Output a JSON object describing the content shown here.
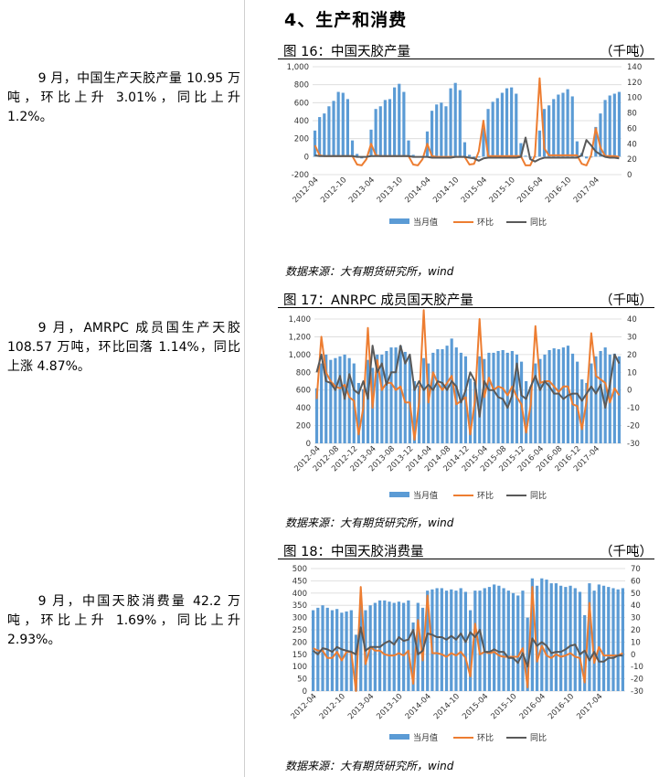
{
  "section_title": "4、生产和消费",
  "comments": [
    "9 月，中国生产天胶产量 10.95 万吨，环比上升 3.01%，同比上升 1.2%。",
    "9 月，AMRPC 成员国生产天胶 108.57 万吨，环比回落 1.14%，同比上涨 4.87%。",
    "9 月，中国天胶消费量 42.2 万吨，环比上升 1.69%，同比上升 2.93%。"
  ],
  "figures": [
    {
      "title": "图 16：中国天胶产量",
      "unit": "（千吨）",
      "source": "数据来源：大有期货研究所，wind"
    },
    {
      "title": "图 17：ANRPC 成员国天胶产量",
      "unit": "（千吨）",
      "source": "数据来源：大有期货研究所，wind"
    },
    {
      "title": "图 18：中国天胶消费量",
      "unit": "（千吨）",
      "source": "数据来源：大有期货研究所，wind"
    }
  ],
  "colors": {
    "bar": "#5b9bd5",
    "mom": "#ed7d31",
    "yoy": "#595959"
  },
  "chart_data": [
    {
      "type": "bar",
      "title": "图 16：中国天胶产量",
      "legend": [
        "当月值",
        "环比",
        "同比"
      ],
      "legend_position": "bottom",
      "grid": true,
      "ylim_left": [
        -200,
        1000
      ],
      "yticks_left": [
        "1,000",
        "800",
        "600",
        "400",
        "200",
        "0",
        "-200"
      ],
      "ylim_right": [
        0,
        140
      ],
      "yticks_right": [
        "140",
        "120",
        "100",
        "80",
        "60",
        "40",
        "20",
        "0"
      ],
      "x_tick_labels": [
        "2012-04",
        "2012-10",
        "2013-04",
        "2013-10",
        "2014-04",
        "2014-10",
        "2015-04",
        "2015-10",
        "2016-04",
        "2016-10",
        "2017-04"
      ],
      "x_tick_index": [
        0,
        6,
        12,
        18,
        24,
        30,
        36,
        42,
        48,
        54,
        60
      ],
      "series": [
        {
          "name": "当月值",
          "axis": "left",
          "type": "bar",
          "values": [
            290,
            440,
            480,
            560,
            620,
            720,
            710,
            640,
            180,
            30,
            -20,
            -10,
            300,
            530,
            560,
            630,
            640,
            770,
            810,
            720,
            180,
            20,
            -10,
            -10,
            280,
            510,
            580,
            600,
            560,
            760,
            820,
            740,
            160,
            20,
            -20,
            -10,
            320,
            530,
            610,
            650,
            710,
            760,
            770,
            700,
            150,
            10,
            -20,
            -10,
            290,
            530,
            570,
            640,
            690,
            710,
            750,
            670,
            170,
            40,
            -20,
            -10,
            330,
            480,
            630,
            680,
            700,
            720
          ]
        },
        {
          "name": "环比",
          "axis": "right",
          "type": "line",
          "values": [
            38,
            25,
            24,
            24,
            24,
            24,
            24,
            24,
            24,
            13,
            12,
            20,
            40,
            25,
            24,
            24,
            24,
            24,
            24,
            24,
            24,
            13,
            12,
            20,
            40,
            24,
            23,
            23,
            23,
            23,
            23,
            23,
            23,
            13,
            14,
            30,
            70,
            24,
            24,
            24,
            24,
            24,
            24,
            24,
            24,
            12,
            12,
            25,
            125,
            34,
            25,
            25,
            25,
            25,
            25,
            25,
            25,
            14,
            12,
            25,
            60,
            35,
            24,
            24,
            24,
            23
          ]
        },
        {
          "name": "同比",
          "axis": "right",
          "type": "line",
          "values": [
            25,
            24,
            24,
            24,
            24,
            24,
            24,
            24,
            24,
            23,
            23,
            23,
            24,
            24,
            24,
            24,
            24,
            24,
            24,
            24,
            24,
            23,
            23,
            23,
            23,
            22,
            22,
            22,
            22,
            22,
            23,
            23,
            23,
            22,
            21,
            18,
            21,
            22,
            22,
            22,
            22,
            22,
            22,
            22,
            23,
            48,
            20,
            17,
            20,
            22,
            22,
            22,
            22,
            22,
            22,
            22,
            22,
            25,
            45,
            38,
            30,
            26,
            23,
            22,
            22,
            21
          ]
        }
      ]
    },
    {
      "type": "bar",
      "title": "图 17：ANRPC 成员国天胶产量",
      "legend": [
        "当月值",
        "环比",
        "同比"
      ],
      "legend_position": "bottom",
      "grid": true,
      "ylim_left": [
        0,
        1400
      ],
      "yticks_left": [
        "1,400",
        "1,200",
        "1,000",
        "800",
        "600",
        "400",
        "200",
        "0"
      ],
      "ylim_right": [
        -30,
        40
      ],
      "yticks_right": [
        "40",
        "30",
        "20",
        "10",
        "0",
        "-10",
        "-20",
        "-30"
      ],
      "x_tick_labels": [
        "2012-04",
        "2012-08",
        "2012-12",
        "2013-04",
        "2013-08",
        "2013-12",
        "2014-04",
        "2014-08",
        "2014-12",
        "2015-04",
        "2015-08",
        "2015-12",
        "2016-04",
        "2016-08",
        "2016-12",
        "2017-04"
      ],
      "x_tick_index": [
        0,
        4,
        8,
        12,
        16,
        20,
        24,
        28,
        32,
        36,
        40,
        44,
        48,
        52,
        56,
        60
      ],
      "series": [
        {
          "name": "当月值",
          "axis": "left",
          "type": "bar",
          "values": [
            620,
            900,
            1000,
            940,
            960,
            980,
            1000,
            960,
            900,
            680,
            610,
            940,
            850,
            1000,
            1000,
            1040,
            1080,
            1080,
            1100,
            1030,
            960,
            700,
            650,
            960,
            900,
            1020,
            1060,
            1060,
            1100,
            1180,
            1080,
            1020,
            980,
            730,
            690,
            980,
            950,
            1020,
            1020,
            1040,
            1050,
            1020,
            1040,
            1000,
            920,
            700,
            640,
            900,
            950,
            1000,
            1050,
            1070,
            1060,
            1080,
            1100,
            1010,
            920,
            720,
            680,
            900,
            980,
            1040,
            1080,
            1000,
            1010,
            980
          ]
        },
        {
          "name": "环比",
          "axis": "right",
          "type": "line",
          "values": [
            -5,
            30,
            10,
            5,
            2,
            1,
            3,
            -4,
            -6,
            -25,
            -10,
            35,
            -10,
            17,
            0,
            4,
            4,
            0,
            2,
            -7,
            -7,
            -28,
            -7,
            45,
            -7,
            10,
            4,
            0,
            4,
            8,
            -8,
            -6,
            -4,
            -25,
            -6,
            40,
            -4,
            7,
            0,
            2,
            1,
            -3,
            2,
            -4,
            -8,
            -24,
            -8,
            36,
            4,
            5,
            5,
            2,
            -1,
            2,
            2,
            -8,
            -9,
            -22,
            -6,
            32,
            8,
            6,
            4,
            -7,
            1,
            -3
          ]
        },
        {
          "name": "同比",
          "axis": "right",
          "type": "line",
          "values": [
            10,
            20,
            5,
            4,
            0,
            8,
            -5,
            9,
            0,
            -2,
            5,
            -5,
            25,
            10,
            15,
            3,
            10,
            10,
            25,
            15,
            20,
            0,
            5,
            0,
            3,
            0,
            5,
            4,
            0,
            5,
            2,
            -7,
            0,
            10,
            5,
            -15,
            5,
            0,
            0,
            -4,
            -5,
            -10,
            -3,
            15,
            -3,
            -5,
            2,
            8,
            0,
            5,
            2,
            -2,
            -2,
            -5,
            -3,
            -2,
            -2,
            -6,
            -2,
            2,
            -2,
            3,
            -10,
            3,
            20,
            15
          ]
        }
      ]
    },
    {
      "type": "bar",
      "title": "图 18：中国天胶消费量",
      "legend": [
        "当月值",
        "环比",
        "同比"
      ],
      "legend_position": "bottom",
      "grid": true,
      "ylim_left": [
        0,
        500
      ],
      "yticks_left": [
        "500",
        "450",
        "400",
        "350",
        "300",
        "250",
        "200",
        "150",
        "100",
        "50",
        "0"
      ],
      "ylim_right": [
        -30,
        70
      ],
      "yticks_right": [
        "70",
        "60",
        "50",
        "40",
        "30",
        "20",
        "10",
        "0",
        "-10",
        "-20",
        "-30"
      ],
      "x_tick_labels": [
        "2012-04",
        "2012-10",
        "2013-04",
        "2013-10",
        "2014-04",
        "2014-10",
        "2015-04",
        "2015-10",
        "2016-04",
        "2016-10",
        "2017-04"
      ],
      "x_tick_index": [
        0,
        6,
        12,
        18,
        24,
        30,
        36,
        42,
        48,
        54,
        60
      ],
      "series": [
        {
          "name": "当月值",
          "axis": "left",
          "type": "bar",
          "values": [
            330,
            340,
            350,
            340,
            330,
            335,
            320,
            325,
            330,
            230,
            360,
            330,
            350,
            360,
            370,
            370,
            365,
            360,
            365,
            360,
            370,
            280,
            360,
            340,
            410,
            415,
            420,
            420,
            410,
            415,
            410,
            420,
            405,
            330,
            410,
            410,
            420,
            425,
            435,
            430,
            420,
            410,
            400,
            390,
            410,
            300,
            460,
            430,
            460,
            455,
            440,
            440,
            430,
            425,
            430,
            420,
            405,
            310,
            440,
            410,
            435,
            430,
            425,
            420,
            415,
            420
          ]
        },
        {
          "name": "环比",
          "axis": "right",
          "type": "line",
          "values": [
            5,
            3,
            3,
            -3,
            -3,
            2,
            -5,
            2,
            2,
            -30,
            55,
            -8,
            6,
            3,
            3,
            0,
            -1,
            -1,
            1,
            -1,
            3,
            -24,
            28,
            -5,
            48,
            1,
            1,
            0,
            -2,
            1,
            -1,
            2,
            -3,
            -18,
            25,
            0,
            2,
            1,
            2,
            -1,
            -2,
            -2,
            -2,
            -2,
            5,
            -27,
            55,
            -6,
            7,
            -1,
            -3,
            0,
            -2,
            -1,
            1,
            -2,
            -3,
            -23,
            42,
            -7,
            6,
            -1,
            -1,
            -1,
            -1,
            1
          ]
        },
        {
          "name": "同比",
          "axis": "right",
          "type": "line",
          "values": [
            3,
            0,
            5,
            4,
            2,
            6,
            4,
            3,
            2,
            0,
            22,
            3,
            6,
            6,
            6,
            9,
            11,
            8,
            14,
            11,
            12,
            20,
            0,
            3,
            17,
            16,
            14,
            14,
            12,
            15,
            12,
            17,
            10,
            18,
            14,
            20,
            2,
            2,
            4,
            2,
            2,
            -3,
            -3,
            -7,
            1,
            -10,
            13,
            7,
            10,
            7,
            1,
            2,
            2,
            4,
            7,
            8,
            0,
            3,
            -5,
            2,
            -6,
            -6,
            -3,
            -3,
            -1,
            -1
          ]
        }
      ]
    }
  ]
}
